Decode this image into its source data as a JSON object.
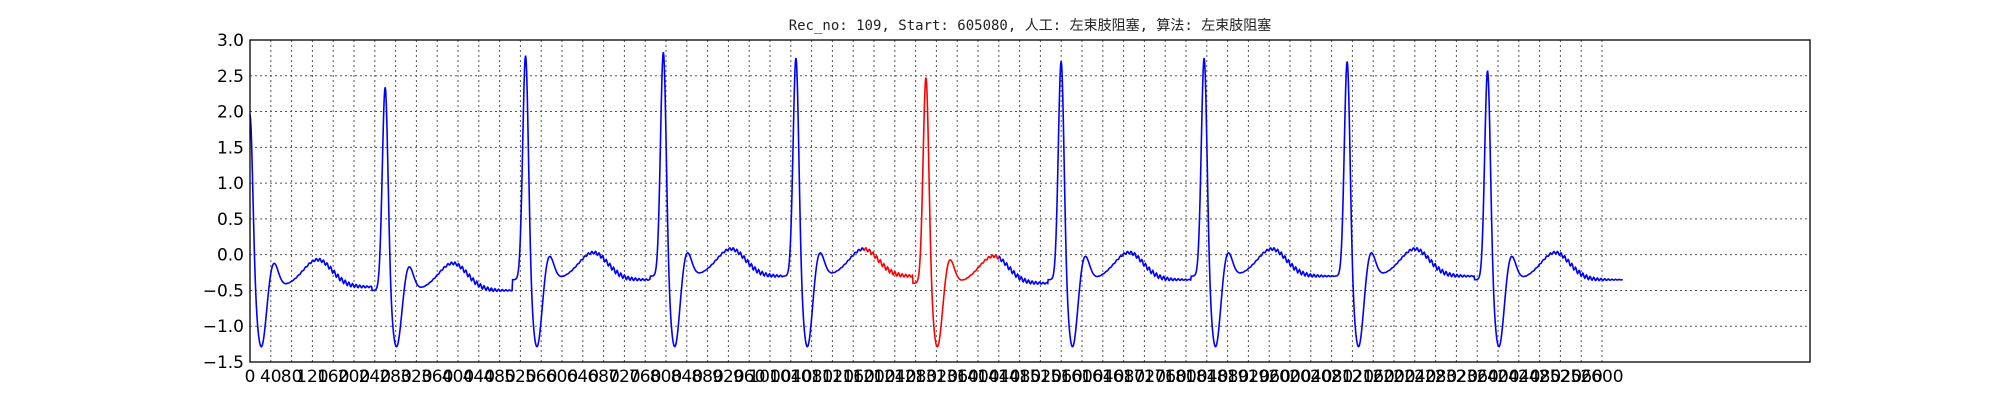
{
  "chart_data": {
    "type": "line",
    "title": "Rec_no: 109, Start: 605080, 人工: 左束肢阻塞, 算法: 左束肢阻塞",
    "xlabel": "",
    "ylabel": "",
    "xlim": [
      0,
      3000
    ],
    "ylim": [
      -1.5,
      3.0
    ],
    "grid": true,
    "x_ticks": [
      0,
      40,
      80,
      120,
      160,
      200,
      240,
      280,
      320,
      360,
      400,
      440,
      480,
      520,
      560,
      600,
      640,
      680,
      720,
      760,
      800,
      840,
      880,
      920,
      960,
      1000,
      1040,
      1080,
      1120,
      1160,
      1200,
      1240,
      1280,
      1320,
      1360,
      1400,
      1440,
      1480,
      1520,
      1560,
      1600,
      1640,
      1680,
      1720,
      1760,
      1800,
      1840,
      1880,
      1920,
      1960,
      2000,
      2040,
      2080,
      2120,
      2160,
      2200,
      2240,
      2280,
      2320,
      2360,
      2400,
      2440,
      2480,
      2520,
      2560,
      2600
    ],
    "y_ticks": [
      -1.5,
      -1.0,
      -0.5,
      0.0,
      0.5,
      1.0,
      1.5,
      2.0,
      2.5,
      3.0
    ],
    "y_tick_labels": [
      "−1.5",
      "−1.0",
      "−0.5",
      "0.0",
      "0.5",
      "1.0",
      "1.5",
      "2.0",
      "2.5",
      "3.0"
    ],
    "signal_length": 2640,
    "highlight": {
      "start": 1180,
      "end": 1440,
      "color": "#ff0000"
    },
    "series": [
      {
        "color": "#0000ff"
      }
    ],
    "beats": [
      {
        "x": 0,
        "peak": 2.0,
        "base": -0.45
      },
      {
        "x": 260,
        "peak": 2.38,
        "base": -0.5
      },
      {
        "x": 530,
        "peak": 2.83,
        "base": -0.35
      },
      {
        "x": 795,
        "peak": 2.88,
        "base": -0.3
      },
      {
        "x": 1050,
        "peak": 2.8,
        "base": -0.3
      },
      {
        "x": 1300,
        "peak": 2.52,
        "base": -0.4
      },
      {
        "x": 1560,
        "peak": 2.75,
        "base": -0.35
      },
      {
        "x": 1835,
        "peak": 2.8,
        "base": -0.3
      },
      {
        "x": 2110,
        "peak": 2.75,
        "base": -0.3
      },
      {
        "x": 2380,
        "peak": 2.62,
        "base": -0.35
      }
    ]
  }
}
